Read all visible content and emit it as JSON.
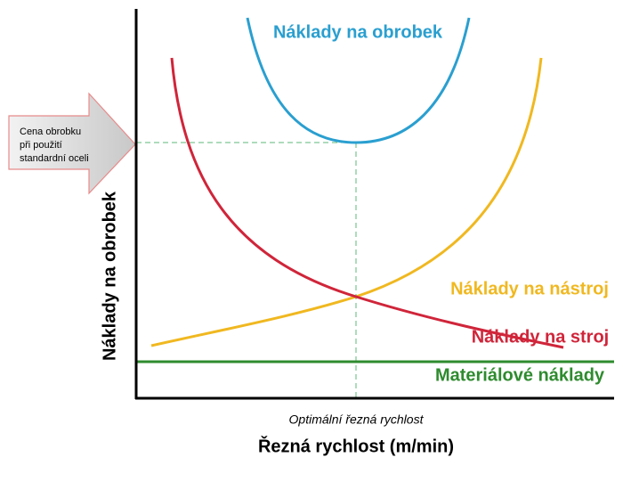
{
  "curves": [
    {
      "label": "Náklady na obrobek",
      "color": "#2a9fd0"
    },
    {
      "label": "Náklady na nástroj",
      "color": "#f0b820"
    },
    {
      "label": "Náklady na stroj",
      "color": "#d0253a"
    },
    {
      "label": "Materiálové náklady",
      "color": "#2e8b2e"
    }
  ],
  "callout": {
    "lines": [
      "Cena obrobku",
      "při použití",
      "standardní oceli"
    ]
  },
  "axes": {
    "y_label": "Náklady na obrobek",
    "x_note": "Optimální řezná rychlost",
    "x_label": "Řezná rychlost (m/min)"
  }
}
